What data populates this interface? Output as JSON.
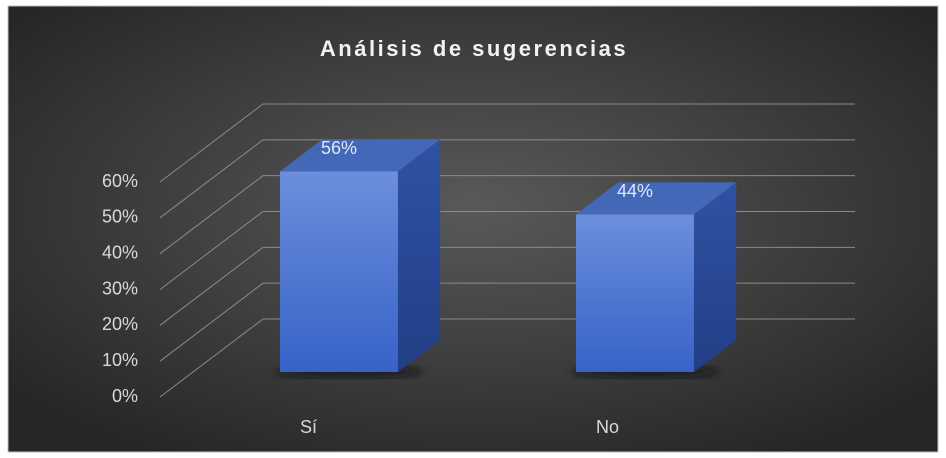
{
  "chart_data": {
    "type": "bar3d",
    "title": "Análisis de sugerencias",
    "categories": [
      "Sí",
      "No"
    ],
    "values": [
      56,
      44
    ],
    "value_labels": [
      "56%",
      "44%"
    ],
    "color": "#4a74d4",
    "ylim": [
      0,
      60
    ],
    "yticks": [
      {
        "value": 0,
        "label": "0%"
      },
      {
        "value": 10,
        "label": "10%"
      },
      {
        "value": 20,
        "label": "20%"
      },
      {
        "value": 30,
        "label": "30%"
      },
      {
        "value": 40,
        "label": "40%"
      },
      {
        "value": 50,
        "label": "50%"
      },
      {
        "value": 60,
        "label": "60%"
      }
    ],
    "grid": true
  }
}
